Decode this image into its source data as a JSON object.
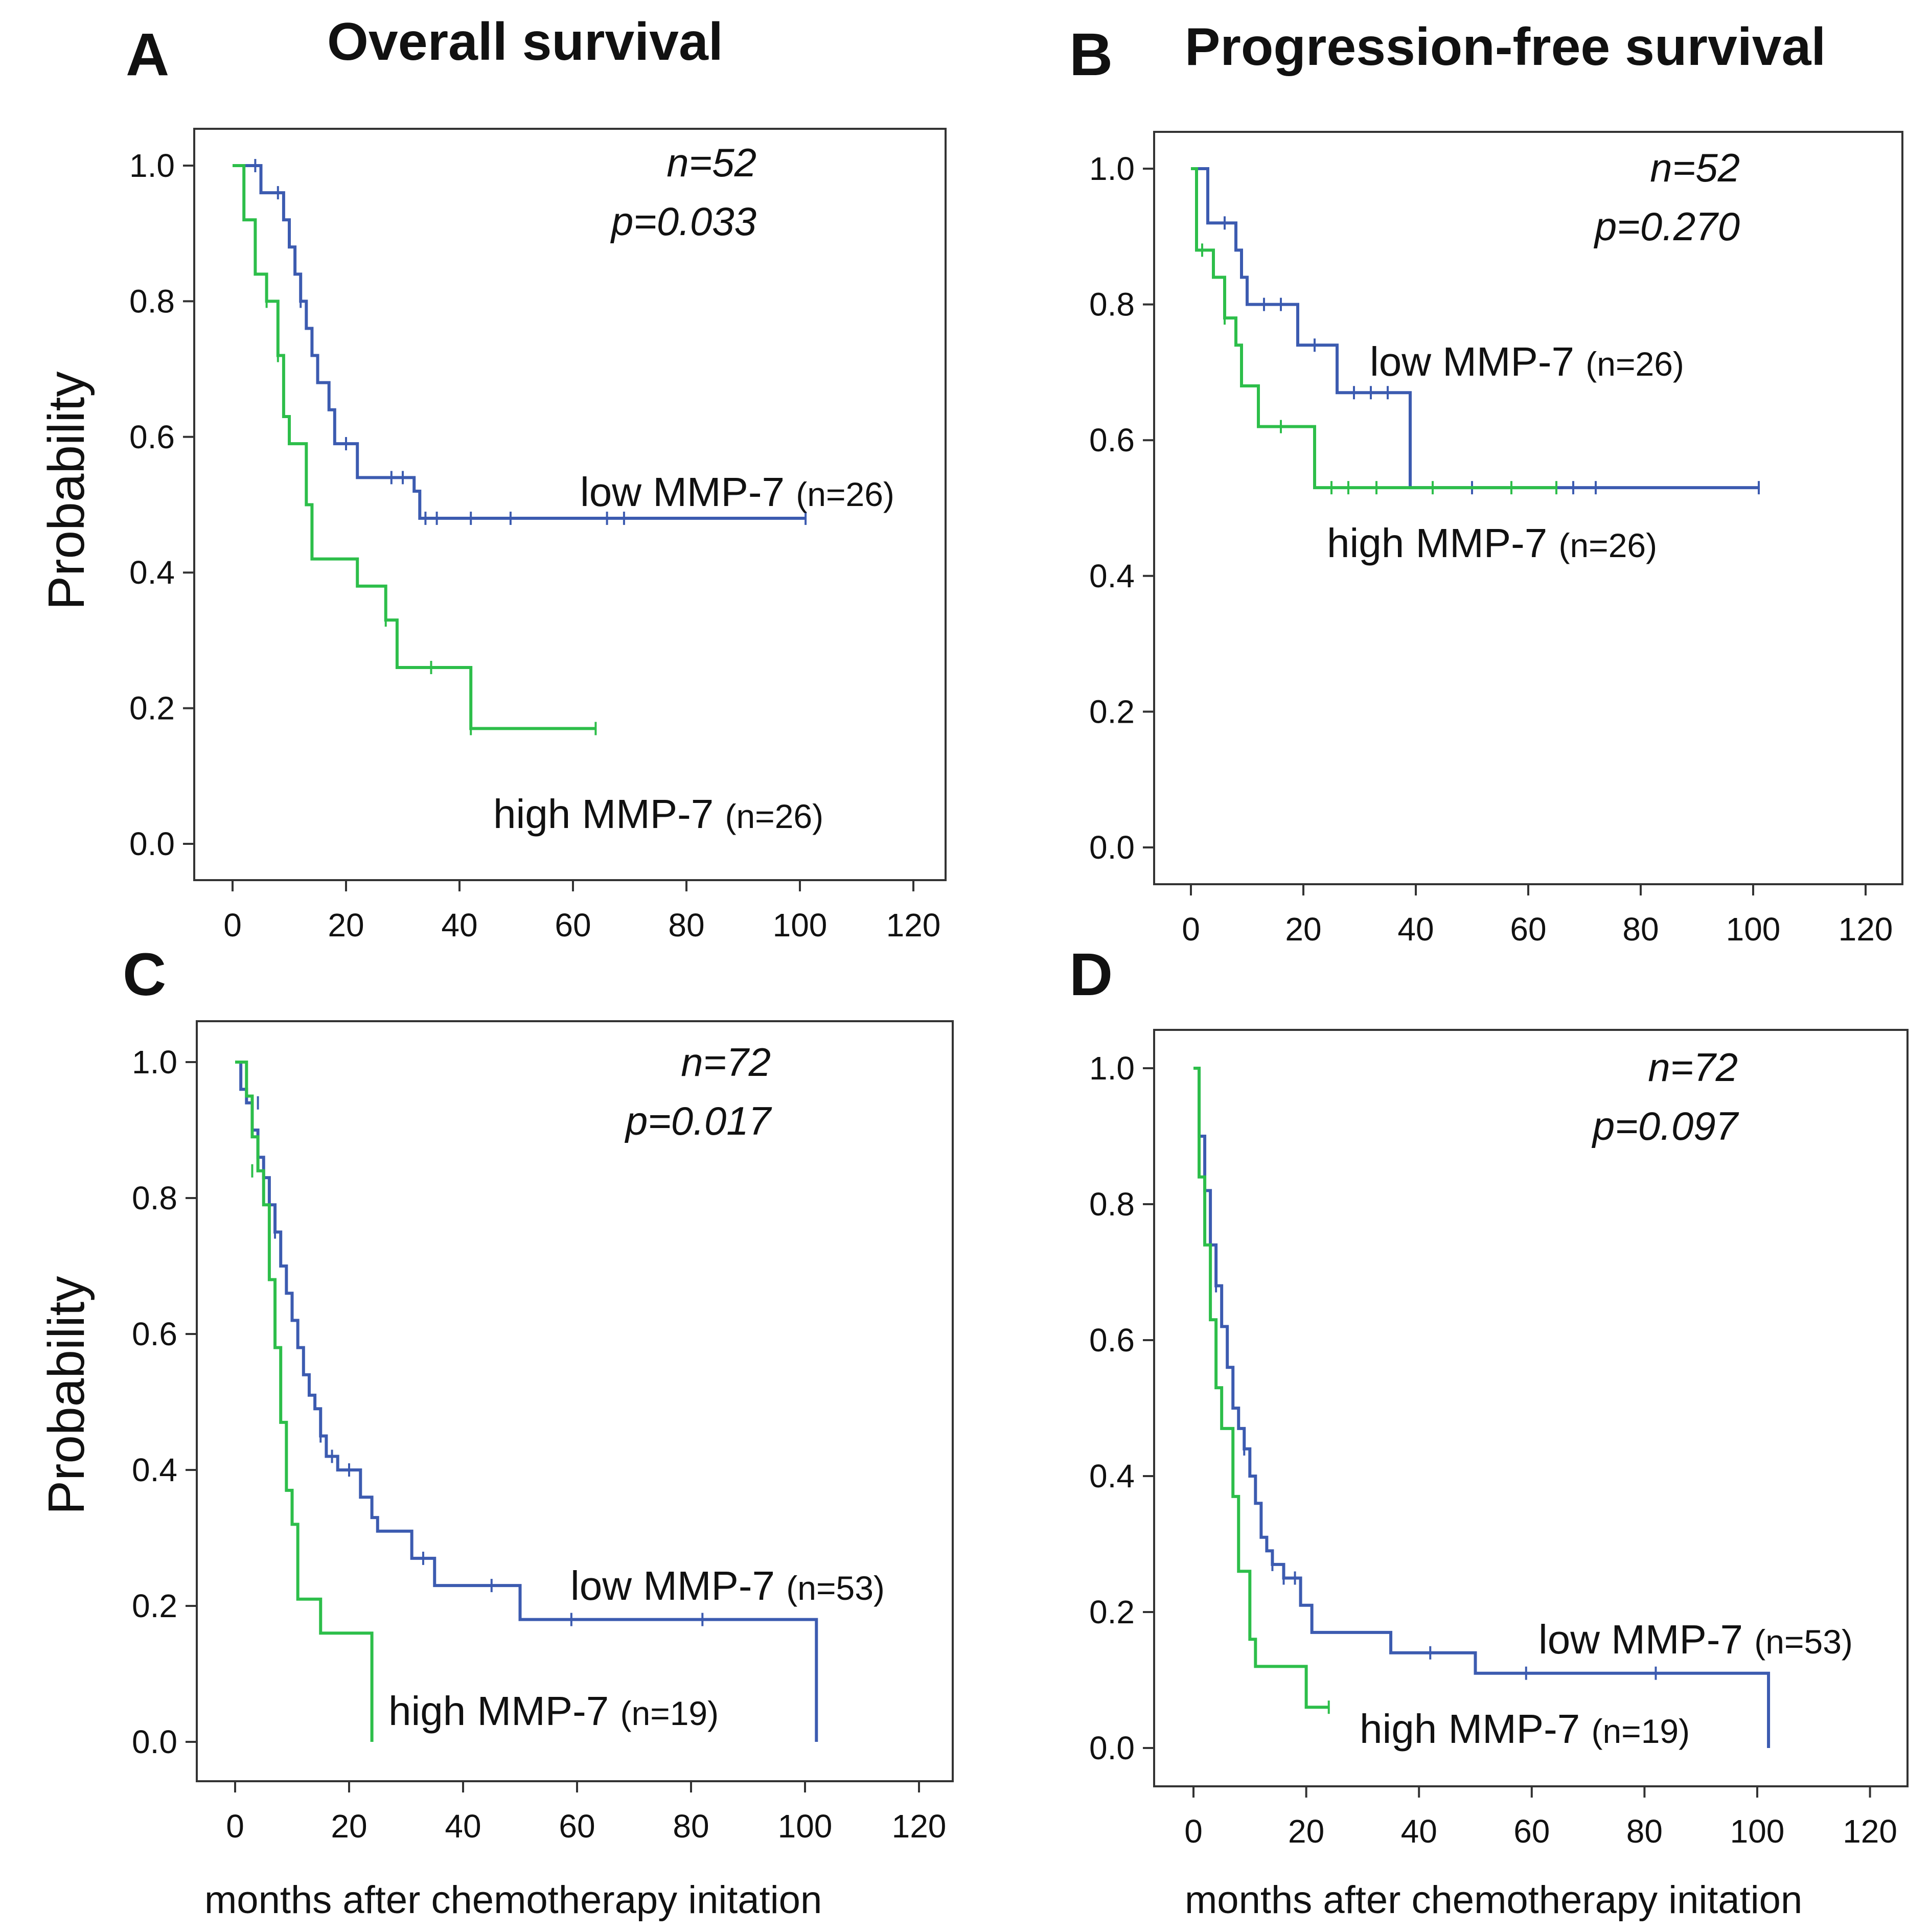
{
  "panels": {
    "a": {
      "letter": "A",
      "title": "Overall survival"
    },
    "b": {
      "letter": "B",
      "title": "Progression-free survival"
    },
    "c": {
      "letter": "C",
      "title": ""
    },
    "d": {
      "letter": "D",
      "title": ""
    }
  },
  "axis_labels": {
    "y_top": "Probability",
    "y_bottom": "Probability",
    "x_left": "months after chemotherapy initation",
    "x_right": "months after chemotherapy initation"
  },
  "colors": {
    "low": "#3C5BB0",
    "high": "#2DBE4A",
    "axis": "#333333"
  },
  "chart_data": [
    {
      "id": "A",
      "type": "line",
      "title": "Overall survival",
      "xlabel": "",
      "ylabel": "Probability",
      "xlim": [
        0,
        120
      ],
      "ylim": [
        0,
        1
      ],
      "xticks": [
        "0",
        "20",
        "40",
        "60",
        "80",
        "100",
        "120"
      ],
      "yticks": [
        "0.0",
        "0.2",
        "0.4",
        "0.6",
        "0.8",
        "1.0"
      ],
      "stats": {
        "n": "n=52",
        "p": "p=0.033"
      },
      "series": [
        {
          "name": "low MMP-7",
          "n_label": "(n=26)",
          "color": "#3C5BB0",
          "steps": [
            [
              0,
              1.0
            ],
            [
              5,
              0.96
            ],
            [
              9,
              0.92
            ],
            [
              10,
              0.88
            ],
            [
              11,
              0.84
            ],
            [
              12,
              0.8
            ],
            [
              13,
              0.76
            ],
            [
              14,
              0.72
            ],
            [
              15,
              0.68
            ],
            [
              17,
              0.64
            ],
            [
              18,
              0.59
            ],
            [
              22,
              0.54
            ],
            [
              32,
              0.52
            ],
            [
              33,
              0.48
            ],
            [
              101,
              0.48
            ]
          ],
          "censor": [
            [
              4,
              1.0
            ],
            [
              8,
              0.96
            ],
            [
              12,
              0.8
            ],
            [
              20,
              0.59
            ],
            [
              28,
              0.54
            ],
            [
              30,
              0.54
            ],
            [
              34,
              0.48
            ],
            [
              36,
              0.48
            ],
            [
              42,
              0.48
            ],
            [
              49,
              0.48
            ],
            [
              66,
              0.48
            ],
            [
              69,
              0.48
            ],
            [
              101,
              0.48
            ]
          ]
        },
        {
          "name": "high MMP-7",
          "n_label": "(n=26)",
          "color": "#2DBE4A",
          "steps": [
            [
              0,
              1.0
            ],
            [
              2,
              0.92
            ],
            [
              4,
              0.84
            ],
            [
              6,
              0.8
            ],
            [
              8,
              0.72
            ],
            [
              9,
              0.63
            ],
            [
              10,
              0.59
            ],
            [
              13,
              0.5
            ],
            [
              14,
              0.42
            ],
            [
              22,
              0.38
            ],
            [
              27,
              0.33
            ],
            [
              29,
              0.26
            ],
            [
              42,
              0.17
            ],
            [
              64,
              0.17
            ]
          ],
          "censor": [
            [
              6,
              0.8
            ],
            [
              8,
              0.72
            ],
            [
              27,
              0.33
            ],
            [
              35,
              0.26
            ],
            [
              42,
              0.17
            ],
            [
              64,
              0.17
            ]
          ]
        }
      ]
    },
    {
      "id": "B",
      "type": "line",
      "title": "Progression-free survival",
      "xlabel": "",
      "ylabel": "",
      "xlim": [
        0,
        120
      ],
      "ylim": [
        0,
        1
      ],
      "xticks": [
        "0",
        "20",
        "40",
        "60",
        "80",
        "100",
        "120"
      ],
      "yticks": [
        "0.0",
        "0.2",
        "0.4",
        "0.6",
        "0.8",
        "1.0"
      ],
      "stats": {
        "n": "n=52",
        "p": "p=0.270"
      },
      "series": [
        {
          "name": "low MMP-7",
          "n_label": "(n=26)",
          "color": "#3C5BB0",
          "steps": [
            [
              0,
              1.0
            ],
            [
              3,
              0.92
            ],
            [
              8,
              0.88
            ],
            [
              9,
              0.84
            ],
            [
              10,
              0.8
            ],
            [
              19,
              0.74
            ],
            [
              26,
              0.67
            ],
            [
              39,
              0.53
            ],
            [
              101,
              0.53
            ]
          ],
          "censor": [
            [
              6,
              0.92
            ],
            [
              13,
              0.8
            ],
            [
              16,
              0.8
            ],
            [
              22,
              0.74
            ],
            [
              29,
              0.67
            ],
            [
              32,
              0.67
            ],
            [
              35,
              0.67
            ],
            [
              50,
              0.53
            ],
            [
              68,
              0.53
            ],
            [
              72,
              0.53
            ],
            [
              101,
              0.53
            ]
          ]
        },
        {
          "name": "high MMP-7",
          "n_label": "(n=26)",
          "color": "#2DBE4A",
          "steps": [
            [
              0,
              1.0
            ],
            [
              1,
              0.88
            ],
            [
              4,
              0.84
            ],
            [
              6,
              0.78
            ],
            [
              8,
              0.74
            ],
            [
              9,
              0.68
            ],
            [
              12,
              0.62
            ],
            [
              22,
              0.53
            ],
            [
              65,
              0.53
            ]
          ],
          "censor": [
            [
              2,
              0.88
            ],
            [
              6,
              0.78
            ],
            [
              16,
              0.62
            ],
            [
              25,
              0.53
            ],
            [
              28,
              0.53
            ],
            [
              33,
              0.53
            ],
            [
              43,
              0.53
            ],
            [
              57,
              0.53
            ],
            [
              65,
              0.53
            ]
          ]
        }
      ]
    },
    {
      "id": "C",
      "type": "line",
      "title": "",
      "xlabel": "months after chemotherapy initation",
      "ylabel": "Probability",
      "xlim": [
        0,
        120
      ],
      "ylim": [
        0,
        1
      ],
      "xticks": [
        "0",
        "20",
        "40",
        "60",
        "80",
        "100",
        "120"
      ],
      "yticks": [
        "0.0",
        "0.2",
        "0.4",
        "0.6",
        "0.8",
        "1.0"
      ],
      "stats": {
        "n": "n=72",
        "p": "p=0.017"
      },
      "series": [
        {
          "name": "low MMP-7",
          "n_label": "(n=53)",
          "color": "#3C5BB0",
          "steps": [
            [
              0,
              1.0
            ],
            [
              1,
              0.96
            ],
            [
              2,
              0.94
            ],
            [
              3,
              0.9
            ],
            [
              4,
              0.86
            ],
            [
              5,
              0.83
            ],
            [
              6,
              0.79
            ],
            [
              7,
              0.75
            ],
            [
              8,
              0.7
            ],
            [
              9,
              0.66
            ],
            [
              10,
              0.62
            ],
            [
              11,
              0.58
            ],
            [
              12,
              0.54
            ],
            [
              13,
              0.51
            ],
            [
              14,
              0.49
            ],
            [
              15,
              0.45
            ],
            [
              16,
              0.42
            ],
            [
              18,
              0.4
            ],
            [
              22,
              0.36
            ],
            [
              24,
              0.33
            ],
            [
              25,
              0.31
            ],
            [
              31,
              0.27
            ],
            [
              35,
              0.23
            ],
            [
              50,
              0.18
            ],
            [
              102,
              0.18
            ],
            [
              102,
              0.0
            ]
          ],
          "censor": [
            [
              4,
              0.94
            ],
            [
              6,
              0.79
            ],
            [
              7,
              0.75
            ],
            [
              15,
              0.45
            ],
            [
              17,
              0.42
            ],
            [
              20,
              0.4
            ],
            [
              33,
              0.27
            ],
            [
              45,
              0.23
            ],
            [
              59,
              0.18
            ],
            [
              82,
              0.18
            ]
          ]
        },
        {
          "name": "high MMP-7",
          "n_label": "(n=19)",
          "color": "#2DBE4A",
          "steps": [
            [
              0,
              1.0
            ],
            [
              2,
              0.95
            ],
            [
              3,
              0.89
            ],
            [
              4,
              0.84
            ],
            [
              5,
              0.79
            ],
            [
              6,
              0.68
            ],
            [
              7,
              0.58
            ],
            [
              8,
              0.47
            ],
            [
              9,
              0.37
            ],
            [
              10,
              0.32
            ],
            [
              11,
              0.21
            ],
            [
              15,
              0.16
            ],
            [
              24,
              0.12
            ],
            [
              24,
              0.0
            ]
          ],
          "censor": [
            [
              3,
              0.84
            ],
            [
              24,
              0.12
            ]
          ]
        }
      ]
    },
    {
      "id": "D",
      "type": "line",
      "title": "",
      "xlabel": "months after chemotherapy initation",
      "ylabel": "",
      "xlim": [
        0,
        120
      ],
      "ylim": [
        0,
        1
      ],
      "xticks": [
        "0",
        "20",
        "40",
        "60",
        "80",
        "100",
        "120"
      ],
      "yticks": [
        "0.0",
        "0.2",
        "0.4",
        "0.6",
        "0.8",
        "1.0"
      ],
      "stats": {
        "n": "n=72",
        "p": "p=0.097"
      },
      "series": [
        {
          "name": "low MMP-7",
          "n_label": "(n=53)",
          "color": "#3C5BB0",
          "steps": [
            [
              0,
              1.0
            ],
            [
              1,
              0.9
            ],
            [
              2,
              0.82
            ],
            [
              3,
              0.74
            ],
            [
              4,
              0.68
            ],
            [
              5,
              0.62
            ],
            [
              6,
              0.56
            ],
            [
              7,
              0.5
            ],
            [
              8,
              0.47
            ],
            [
              9,
              0.44
            ],
            [
              10,
              0.4
            ],
            [
              11,
              0.36
            ],
            [
              12,
              0.31
            ],
            [
              13,
              0.29
            ],
            [
              14,
              0.27
            ],
            [
              16,
              0.25
            ],
            [
              19,
              0.21
            ],
            [
              21,
              0.17
            ],
            [
              35,
              0.14
            ],
            [
              50,
              0.11
            ],
            [
              102,
              0.11
            ],
            [
              102,
              0.0
            ]
          ],
          "censor": [
            [
              3,
              0.74
            ],
            [
              4,
              0.68
            ],
            [
              9,
              0.44
            ],
            [
              14,
              0.27
            ],
            [
              16,
              0.25
            ],
            [
              18,
              0.25
            ],
            [
              42,
              0.14
            ],
            [
              59,
              0.11
            ],
            [
              82,
              0.11
            ]
          ]
        },
        {
          "name": "high MMP-7",
          "n_label": "(n=19)",
          "color": "#2DBE4A",
          "steps": [
            [
              0,
              1.0
            ],
            [
              1,
              0.84
            ],
            [
              2,
              0.74
            ],
            [
              3,
              0.63
            ],
            [
              4,
              0.53
            ],
            [
              5,
              0.47
            ],
            [
              7,
              0.37
            ],
            [
              8,
              0.26
            ],
            [
              10,
              0.16
            ],
            [
              11,
              0.12
            ],
            [
              20,
              0.06
            ],
            [
              24,
              0.06
            ]
          ],
          "censor": [
            [
              24,
              0.06
            ]
          ]
        }
      ]
    }
  ]
}
